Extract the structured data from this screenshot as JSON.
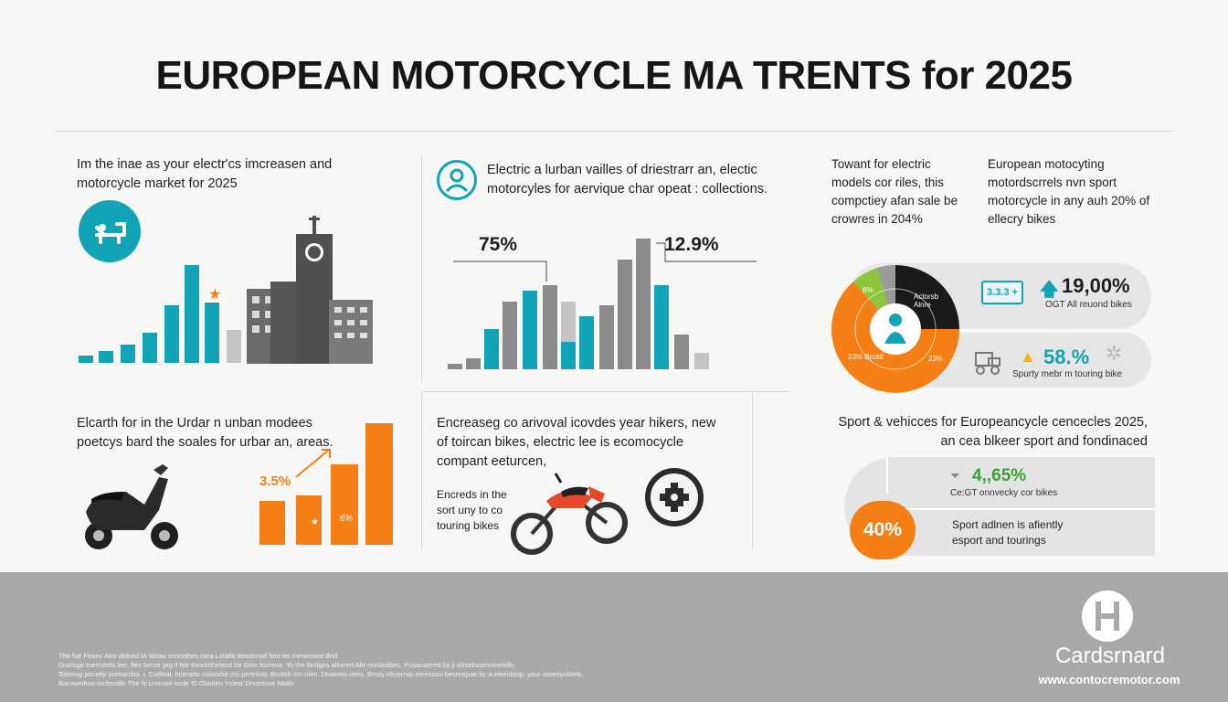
{
  "title": "EUROPEAN MOTORCYCLE MA TRENTS for 2025",
  "panel1": {
    "text": [
      "Im the inae as your electr'cs imcreasen and",
      "motorcycle market for 2025"
    ]
  },
  "panel2": {
    "text": [
      "Electric a lurban vailles of driestrarr an, electic",
      "motorcyles for aervique char opeat : collections."
    ],
    "label_left": "75%",
    "label_right": "12.9%"
  },
  "panel3": {
    "text_left": [
      "Towant for electric",
      "models cor riles, this",
      "compctiey afan sale be",
      "crowres in 204%"
    ],
    "text_right": [
      "European motocyting",
      "motordscrrels nvn sport",
      "motorcycle in any auh 20% of",
      "ellecry bikes"
    ],
    "donut_labels": [
      "8%",
      "Actorsb Alnre",
      "23% Bcotd",
      "23%"
    ],
    "pill1_badge": "3.3.3 +",
    "pill1_value": "19,00%",
    "pill1_caption": "OGT All reuond bikes",
    "pill2_value": "58.%",
    "pill2_caption": "Spurty mebr m touring bike"
  },
  "panel4": {
    "text": [
      "Elcarth for in the Urdar n unban modees",
      "poetcys bard the soales for urbar an, areas."
    ],
    "label": "3.5%",
    "bar_mark": "6%"
  },
  "panel5": {
    "text": [
      "Encreaseg co arivoval icovdes year hikers, new",
      "of toircan bikes, electric lee is ecomocycle",
      "compant eeturcen,"
    ],
    "caption": [
      "Encreds in the",
      "sort uny to co",
      "touring bikes"
    ]
  },
  "panel6": {
    "heading": [
      "Sport & vehicces for Europeancycle cencecles 2025,",
      "an cea blkeer sport and fondinaced"
    ],
    "value_top": "4,,65%",
    "caption_top": "Ce:GT onnvecky cor bikes",
    "value_big": "40%",
    "caption_bottom": [
      "Sport adlnen is afiently",
      "esport and tourings"
    ]
  },
  "footer": {
    "brand": "Cardsrnard",
    "url": "www.contocremotor.com",
    "fine": [
      "The fue Feanc Atro dolced IA Wrow snoorthes cara Lalatls tenolnnod hed ter mesesoee 8nd",
      "Ouelsge tnermlelts fee, fles bener prg ll fstr tlaortirthelesd tIe Gitie fsoneor. Yo the Bnliges alloeert Alrt mmlasibes.   Pusanaered  by  ji ohselncorsrtnelelln.",
      "Tottenig pocetlp porearcbn. r. Collelal. hcerarto coloorhe ms pertnlsls. Bcolsh mn nlen. Dnaeeto cees. Bnsty eltyerrap esnrsoso besnrepae lsr a.eleenbtsp. yeur atoerlyobtels,",
      "Bacaoethoo Iocltecdln The fs Lrorooe Iocle 'O Olaolen Yclesr Drcertnoe Ntolo."
    ]
  },
  "colors": {
    "teal": "#12a3b4",
    "orange": "#f47f16",
    "green": "#8cc63f",
    "grey": "#8a8a8a",
    "footer": "#a9a9a9"
  }
}
